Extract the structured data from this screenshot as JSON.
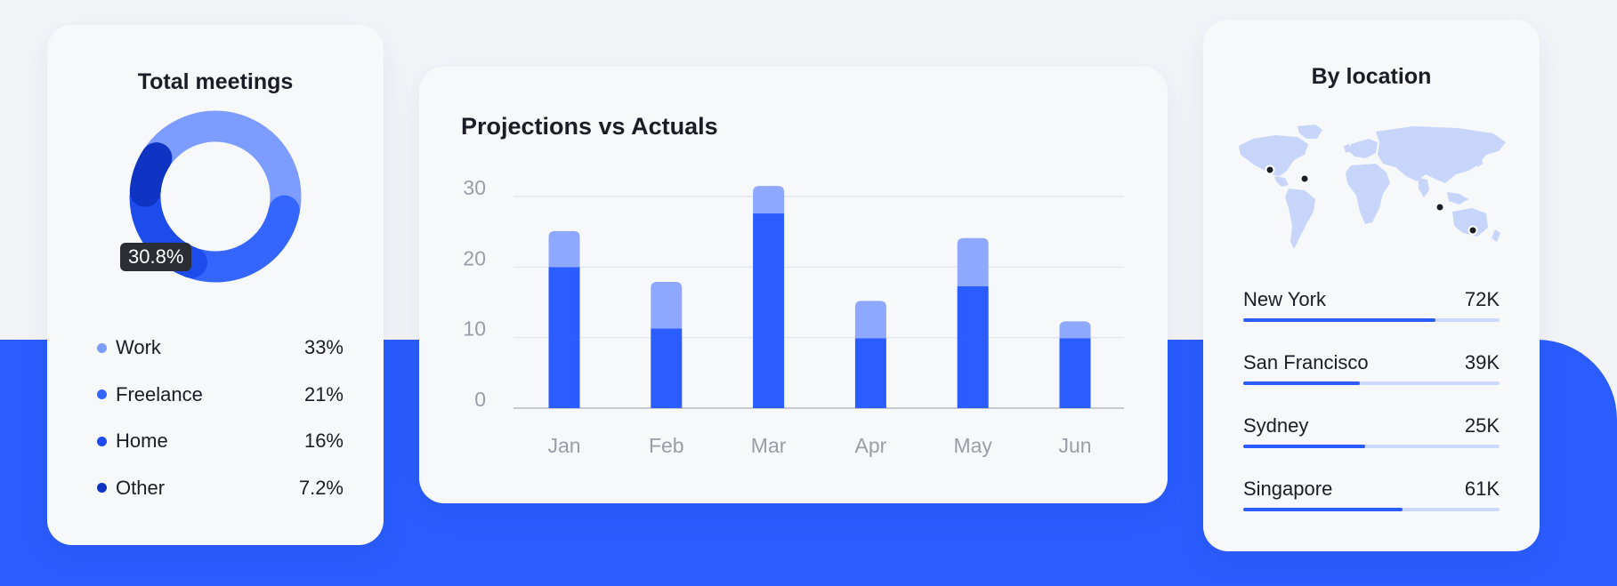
{
  "colors": {
    "accent": "#2A5CFF",
    "accent_light": "#8EA8FF",
    "track": "#CCD8FF",
    "map_land": "#C8D5FB"
  },
  "meetings": {
    "title": "Total meetings",
    "tooltip": "30.8%",
    "legend": [
      {
        "label": "Work",
        "value": "33%",
        "color": "#7C9CFF"
      },
      {
        "label": "Freelance",
        "value": "21%",
        "color": "#3565FF"
      },
      {
        "label": "Home",
        "value": "16%",
        "color": "#1E4BEB"
      },
      {
        "label": "Other",
        "value": "7.2%",
        "color": "#0F33C2"
      }
    ]
  },
  "projections": {
    "title": "Projections vs Actuals"
  },
  "chart_data": [
    {
      "type": "pie",
      "title": "Total meetings",
      "categories": [
        "Work",
        "Freelance",
        "Home",
        "Other"
      ],
      "values": [
        33,
        21,
        16,
        7.2
      ],
      "donut": true,
      "highlight_label": "30.8%"
    },
    {
      "type": "bar",
      "stacked": true,
      "title": "Projections vs Actuals",
      "categories": [
        "Jan",
        "Feb",
        "Mar",
        "Apr",
        "May",
        "Jun"
      ],
      "series": [
        {
          "values": [
            20,
            11.3,
            27.6,
            9.9,
            17.3,
            9.9
          ],
          "color": "#2A5CFF"
        },
        {
          "values": [
            5.1,
            6.6,
            3.9,
            5.3,
            6.8,
            2.4
          ],
          "color": "#8EA8FF"
        }
      ],
      "yticks": [
        0,
        10,
        20,
        30
      ],
      "ylim": [
        0,
        30
      ],
      "grid": true,
      "xlabel": "",
      "ylabel": ""
    }
  ],
  "location": {
    "title": "By location",
    "items": [
      {
        "city": "New York",
        "value": "72K",
        "fraction": 0.75
      },
      {
        "city": "San Francisco",
        "value": "39K",
        "fraction": 0.455
      },
      {
        "city": "Sydney",
        "value": "25K",
        "fraction": 0.475
      },
      {
        "city": "Singapore",
        "value": "61K",
        "fraction": 0.62
      }
    ]
  }
}
